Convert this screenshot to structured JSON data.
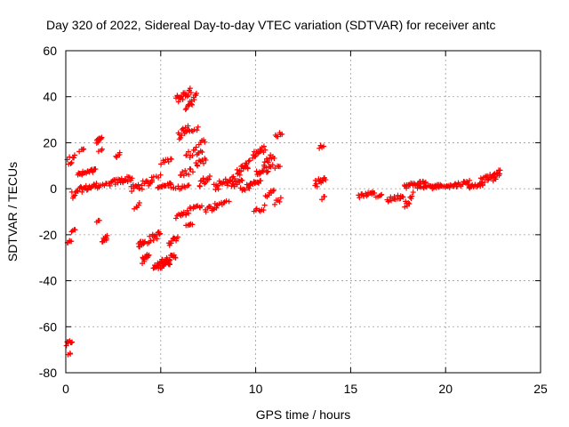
{
  "chart_data": {
    "type": "scatter",
    "title": "Day 320 of 2022, Sidereal Day-to-day VTEC variation (SDTVAR) for receiver antc",
    "xlabel": "GPS time / hours",
    "ylabel": "SDTVAR / TECUs",
    "xlim": [
      0,
      25
    ],
    "ylim": [
      -80,
      60
    ],
    "xticks": [
      0,
      5,
      10,
      15,
      20,
      25
    ],
    "yticks": [
      -80,
      -60,
      -40,
      -20,
      0,
      20,
      40,
      60
    ],
    "grid": true,
    "marker": "+",
    "color": "#ff0000",
    "clusters": [
      {
        "x0": 0.0,
        "x1": 0.35,
        "y0": -69,
        "y1": -65,
        "n": 8
      },
      {
        "x0": 0.1,
        "x1": 0.3,
        "y0": -73,
        "y1": -71,
        "n": 3
      },
      {
        "x0": 0.05,
        "x1": 0.3,
        "y0": -24,
        "y1": -22,
        "n": 5
      },
      {
        "x0": 0.3,
        "x1": 0.5,
        "y0": -19,
        "y1": -17,
        "n": 4
      },
      {
        "x0": 0.05,
        "x1": 0.5,
        "y0": 8,
        "y1": 18,
        "n": 8
      },
      {
        "x0": 0.3,
        "x1": 0.6,
        "y0": -5,
        "y1": 2,
        "n": 6
      },
      {
        "x0": 0.6,
        "x1": 1.6,
        "y0": 5,
        "y1": 9,
        "n": 22
      },
      {
        "x0": 0.6,
        "x1": 1.8,
        "y0": -2,
        "y1": 3,
        "n": 25
      },
      {
        "x0": 0.7,
        "x1": 1.0,
        "y0": 16,
        "y1": 18,
        "n": 4
      },
      {
        "x0": 1.6,
        "x1": 1.9,
        "y0": 19,
        "y1": 23,
        "n": 10
      },
      {
        "x0": 1.7,
        "x1": 2.0,
        "y0": 16,
        "y1": 18,
        "n": 3
      },
      {
        "x0": 1.6,
        "x1": 1.8,
        "y0": -15,
        "y1": -13,
        "n": 3
      },
      {
        "x0": 1.9,
        "x1": 2.2,
        "y0": -24,
        "y1": -20,
        "n": 10
      },
      {
        "x0": 1.8,
        "x1": 2.3,
        "y0": 0,
        "y1": 3,
        "n": 6
      },
      {
        "x0": 2.3,
        "x1": 3.5,
        "y0": 1,
        "y1": 6,
        "n": 24
      },
      {
        "x0": 2.6,
        "x1": 2.9,
        "y0": 13,
        "y1": 16,
        "n": 5
      },
      {
        "x0": 3.4,
        "x1": 4.6,
        "y0": -2,
        "y1": 5,
        "n": 22
      },
      {
        "x0": 3.6,
        "x1": 3.9,
        "y0": -9,
        "y1": -6,
        "n": 5
      },
      {
        "x0": 3.8,
        "x1": 4.2,
        "y0": -26,
        "y1": -21,
        "n": 12
      },
      {
        "x0": 4.0,
        "x1": 4.4,
        "y0": -33,
        "y1": -27,
        "n": 12
      },
      {
        "x0": 4.3,
        "x1": 5.0,
        "y0": -24,
        "y1": -18,
        "n": 16
      },
      {
        "x0": 4.6,
        "x1": 5.5,
        "y0": -36,
        "y1": -30,
        "n": 26
      },
      {
        "x0": 5.0,
        "x1": 5.8,
        "y0": -33,
        "y1": -28,
        "n": 22
      },
      {
        "x0": 5.4,
        "x1": 5.9,
        "y0": -25,
        "y1": -20,
        "n": 12
      },
      {
        "x0": 4.5,
        "x1": 5.0,
        "y0": 4,
        "y1": 6,
        "n": 5
      },
      {
        "x0": 4.8,
        "x1": 5.6,
        "y0": 0,
        "y1": 3,
        "n": 14
      },
      {
        "x0": 5.5,
        "x1": 6.5,
        "y0": -1,
        "y1": 2,
        "n": 12
      },
      {
        "x0": 5.0,
        "x1": 5.6,
        "y0": 10,
        "y1": 14,
        "n": 8
      },
      {
        "x0": 5.8,
        "x1": 6.6,
        "y0": 37,
        "y1": 44,
        "n": 22
      },
      {
        "x0": 6.3,
        "x1": 6.9,
        "y0": 34,
        "y1": 42,
        "n": 14
      },
      {
        "x0": 5.9,
        "x1": 6.5,
        "y0": 21,
        "y1": 29,
        "n": 14
      },
      {
        "x0": 6.5,
        "x1": 7.0,
        "y0": 24,
        "y1": 27,
        "n": 6
      },
      {
        "x0": 6.0,
        "x1": 6.7,
        "y0": 4,
        "y1": 10,
        "n": 10
      },
      {
        "x0": 6.3,
        "x1": 7.2,
        "y0": 12,
        "y1": 20,
        "n": 14
      },
      {
        "x0": 5.8,
        "x1": 6.5,
        "y0": -13,
        "y1": -9,
        "n": 12
      },
      {
        "x0": 6.3,
        "x1": 6.7,
        "y0": -17,
        "y1": -14,
        "n": 6
      },
      {
        "x0": 6.5,
        "x1": 7.2,
        "y0": -10,
        "y1": -6,
        "n": 10
      },
      {
        "x0": 6.8,
        "x1": 7.4,
        "y0": 9,
        "y1": 14,
        "n": 10
      },
      {
        "x0": 7.0,
        "x1": 7.6,
        "y0": 0,
        "y1": 7,
        "n": 12
      },
      {
        "x0": 7.0,
        "x1": 7.4,
        "y0": 19,
        "y1": 22,
        "n": 5
      },
      {
        "x0": 7.3,
        "x1": 8.0,
        "y0": -11,
        "y1": -6,
        "n": 12
      },
      {
        "x0": 7.8,
        "x1": 8.6,
        "y0": -8,
        "y1": -5,
        "n": 10
      },
      {
        "x0": 7.8,
        "x1": 8.9,
        "y0": -1,
        "y1": 6,
        "n": 24
      },
      {
        "x0": 8.7,
        "x1": 9.3,
        "y0": 0,
        "y1": 5,
        "n": 12
      },
      {
        "x0": 9.0,
        "x1": 9.7,
        "y0": 5,
        "y1": 13,
        "n": 18
      },
      {
        "x0": 9.2,
        "x1": 9.8,
        "y0": -2,
        "y1": 3,
        "n": 10
      },
      {
        "x0": 9.6,
        "x1": 10.3,
        "y0": 1,
        "y1": 4,
        "n": 14
      },
      {
        "x0": 9.8,
        "x1": 10.5,
        "y0": 13,
        "y1": 19,
        "n": 16
      },
      {
        "x0": 10.0,
        "x1": 10.9,
        "y0": 5,
        "y1": 11,
        "n": 18
      },
      {
        "x0": 10.4,
        "x1": 11.0,
        "y0": 10,
        "y1": 16,
        "n": 10
      },
      {
        "x0": 9.9,
        "x1": 10.5,
        "y0": -11,
        "y1": -7,
        "n": 8
      },
      {
        "x0": 10.5,
        "x1": 11.0,
        "y0": -4,
        "y1": 0,
        "n": 8
      },
      {
        "x0": 11.0,
        "x1": 11.4,
        "y0": 22,
        "y1": 25,
        "n": 6
      },
      {
        "x0": 11.0,
        "x1": 11.3,
        "y0": 8,
        "y1": 11,
        "n": 4
      },
      {
        "x0": 11.0,
        "x1": 11.4,
        "y0": -7,
        "y1": -3,
        "n": 5
      },
      {
        "x0": 13.3,
        "x1": 13.6,
        "y0": 17,
        "y1": 20,
        "n": 5
      },
      {
        "x0": 13.1,
        "x1": 13.7,
        "y0": 0,
        "y1": 7,
        "n": 14
      },
      {
        "x0": 13.4,
        "x1": 13.7,
        "y0": -5,
        "y1": -3,
        "n": 3
      },
      {
        "x0": 15.4,
        "x1": 16.3,
        "y0": -4,
        "y1": -1,
        "n": 16
      },
      {
        "x0": 16.3,
        "x1": 16.7,
        "y0": -4,
        "y1": -2,
        "n": 5
      },
      {
        "x0": 16.9,
        "x1": 17.8,
        "y0": -6,
        "y1": -2,
        "n": 16
      },
      {
        "x0": 17.8,
        "x1": 18.3,
        "y0": -9,
        "y1": -1,
        "n": 10
      },
      {
        "x0": 17.8,
        "x1": 19.0,
        "y0": 0,
        "y1": 4,
        "n": 24
      },
      {
        "x0": 18.5,
        "x1": 19.8,
        "y0": 0,
        "y1": 2,
        "n": 20
      },
      {
        "x0": 19.3,
        "x1": 20.2,
        "y0": 0,
        "y1": 2,
        "n": 14
      },
      {
        "x0": 20.2,
        "x1": 21.3,
        "y0": 0,
        "y1": 4,
        "n": 22
      },
      {
        "x0": 21.2,
        "x1": 22.0,
        "y0": 0,
        "y1": 3,
        "n": 16
      },
      {
        "x0": 21.8,
        "x1": 22.6,
        "y0": 2,
        "y1": 7,
        "n": 18
      },
      {
        "x0": 22.5,
        "x1": 22.9,
        "y0": 3,
        "y1": 9,
        "n": 12
      }
    ]
  }
}
